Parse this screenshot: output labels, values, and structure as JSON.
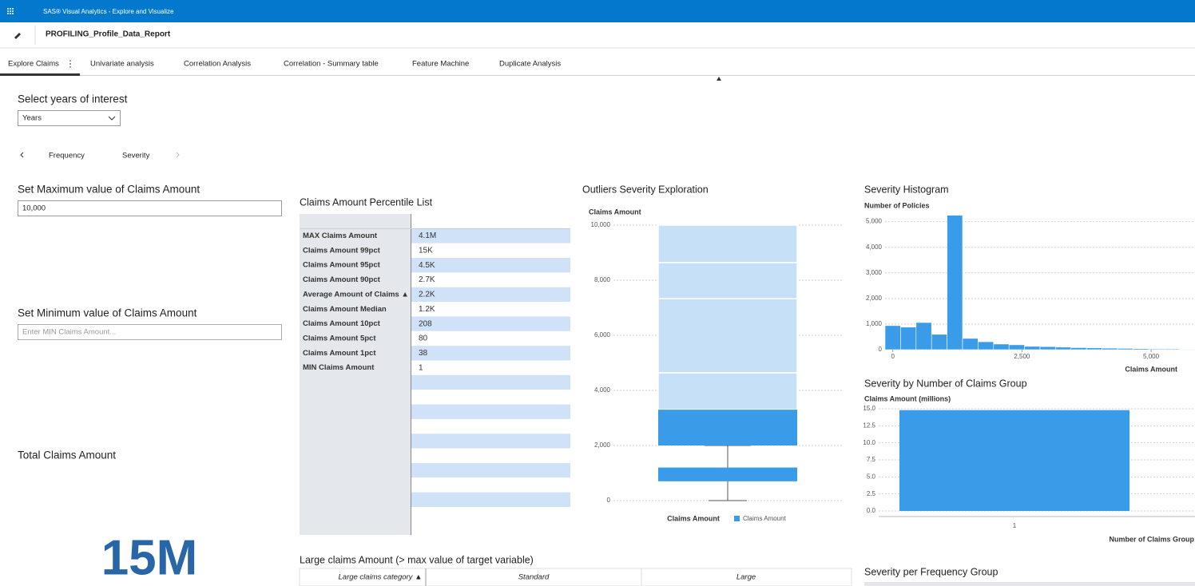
{
  "header": {
    "app_title": "SAS® Visual Analytics - Explore and Visualize",
    "report_title": "PROFILING_Profile_Data_Report"
  },
  "tabs": [
    "Explore Claims",
    "Univariate analysis",
    "Correlation Analysis",
    "Correlation - Summary table",
    "Feature Machine",
    "Duplicate Analysis"
  ],
  "controls": {
    "years_label": "Select years of interest",
    "years_value": "Years",
    "subtabs": [
      "Frequency",
      "Severity"
    ],
    "max_label": "Set Maximum value of Claims Amount",
    "max_value": "10,000",
    "min_label": "Set Minimum value of Claims Amount",
    "min_placeholder": "Enter MIN Claims Amount..."
  },
  "kpi": {
    "title": "Total Claims Amount",
    "value": "15M"
  },
  "percentile_table": {
    "title": "Claims Amount Percentile List",
    "rows": [
      [
        "MAX Claims Amount",
        "4.1M"
      ],
      [
        "Claims Amount 99pct",
        "15K"
      ],
      [
        "Claims Amount 95pct",
        "4.5K"
      ],
      [
        "Claims Amount 90pct",
        "2.7K"
      ],
      [
        "Average Amount of Claims ▲",
        "2.2K"
      ],
      [
        "Claims Amount Median",
        "1.2K"
      ],
      [
        "Claims Amount 10pct",
        "208"
      ],
      [
        "Claims Amount 5pct",
        "80"
      ],
      [
        "Claims Amount 1pct",
        "38"
      ],
      [
        "MIN Claims Amount",
        "1"
      ]
    ]
  },
  "large_claims": {
    "title": "Large claims Amount (> max value of target variable)",
    "columns": [
      "Large claims category ▲",
      "Standard",
      "Large"
    ]
  },
  "sections": {
    "severity_per_frequency": "Severity per Frequency Group"
  },
  "chart_data": [
    {
      "type": "box",
      "title": "Outliers Severity Exploration",
      "y_label": "Claims Amount",
      "x_label": "Claims Amount",
      "legend": "Claims Amount",
      "color": "#3a9be8",
      "band_color": "#c5e0f7",
      "grid": true,
      "whisker": [
        0,
        2000
      ],
      "boxes": [
        {
          "low": 700,
          "high": 1200
        },
        {
          "low": 2000,
          "high": 3300
        }
      ],
      "bands": [
        {
          "low": 3300,
          "high": 4640
        },
        {
          "low": 4640,
          "high": 7330
        },
        {
          "low": 7330,
          "high": 8640
        },
        {
          "low": 8640,
          "high": 10000
        }
      ],
      "ylim": [
        0,
        10000
      ],
      "yticks": [
        0,
        {
          "value": 2000,
          "label": "2,000"
        },
        {
          "value": 4000,
          "label": "4,000"
        },
        {
          "value": 6000,
          "label": "6,000"
        },
        {
          "value": 8000,
          "label": "8,000"
        },
        {
          "value": 10000,
          "label": "10,000"
        }
      ]
    },
    {
      "type": "histogram",
      "title": "Severity Histogram",
      "y_label": "Number of Policies",
      "x_label": "Claims Amount",
      "color": "#3a9be8",
      "grid": true,
      "bins": [
        -150,
        150,
        450,
        750,
        1050,
        1350,
        1650,
        1950,
        2250,
        2550,
        2850,
        3150,
        3450,
        3750,
        4050,
        4350,
        4650,
        4950,
        5250,
        5550,
        5850
      ],
      "values": [
        940,
        880,
        1060,
        600,
        5250,
        440,
        310,
        220,
        190,
        130,
        120,
        100,
        80,
        70,
        60,
        50,
        40,
        30,
        30,
        20
      ],
      "xlim": [
        -150,
        5850
      ],
      "xticks": [
        0,
        {
          "value": 2500,
          "label": "2,500"
        },
        {
          "value": 5000,
          "label": "5,000"
        }
      ],
      "ylim": [
        0,
        5300
      ],
      "yticks": [
        0,
        {
          "value": 1000,
          "label": "1,000"
        },
        {
          "value": 2000,
          "label": "2,000"
        },
        {
          "value": 3000,
          "label": "3,000"
        },
        {
          "value": 4000,
          "label": "4,000"
        },
        {
          "value": 5000,
          "label": "5,000"
        }
      ]
    },
    {
      "type": "bar",
      "title": "Severity by Number of Claims Group",
      "y_label": "Claims Amount (millions)",
      "x_label": "Number of Claims Group",
      "color": "#3a9be8",
      "grid": true,
      "categories": [
        "1"
      ],
      "values": [
        14.8
      ],
      "ylim": [
        0,
        15
      ],
      "yticks": [
        {
          "value": 0,
          "label": "0.0"
        },
        2.5,
        {
          "value": 5,
          "label": "5.0"
        },
        7.5,
        {
          "value": 10,
          "label": "10.0"
        },
        12.5,
        {
          "value": 15,
          "label": "15.0"
        }
      ]
    }
  ]
}
